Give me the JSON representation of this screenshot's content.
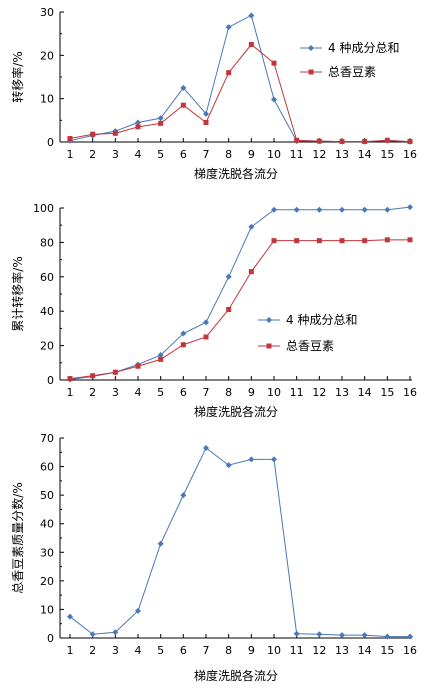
{
  "colors": {
    "blue": "#4a78b8",
    "red": "#c0363a",
    "axis": "#000000"
  },
  "chart_data": [
    {
      "type": "line",
      "xlabel": "梯度洗脱各流分",
      "ylabel": "转移率/%",
      "x": [
        1,
        2,
        3,
        4,
        5,
        6,
        7,
        8,
        9,
        10,
        11,
        12,
        13,
        14,
        15,
        16
      ],
      "xticks": [
        "1",
        "2",
        "3",
        "4",
        "5",
        "6",
        "7",
        "8",
        "9",
        "10",
        "11",
        "12",
        "13",
        "14",
        "15",
        "16"
      ],
      "ylim": [
        0,
        30
      ],
      "yticks": [
        0,
        10,
        20,
        30
      ],
      "legend_position": "right",
      "series": [
        {
          "name": "4 种成分总和",
          "color": "#4a78b8",
          "marker": "diamond",
          "values": [
            0.3,
            1.5,
            2.5,
            4.5,
            5.5,
            12.5,
            6.5,
            26.5,
            29.2,
            9.8,
            0.2,
            0.2,
            0.1,
            0.1,
            0.3,
            0.1
          ]
        },
        {
          "name": "总香豆素",
          "color": "#c0363a",
          "marker": "square",
          "values": [
            0.8,
            1.8,
            2.0,
            3.5,
            4.3,
            8.5,
            4.5,
            16.0,
            22.5,
            18.2,
            0.4,
            0.2,
            0.1,
            0.1,
            0.4,
            0.1
          ]
        }
      ]
    },
    {
      "type": "line",
      "xlabel": "梯度洗脱各流分",
      "ylabel": "累计转移率/%",
      "x": [
        1,
        2,
        3,
        4,
        5,
        6,
        7,
        8,
        9,
        10,
        11,
        12,
        13,
        14,
        15,
        16
      ],
      "xticks": [
        "1",
        "2",
        "3",
        "4",
        "5",
        "6",
        "7",
        "8",
        "9",
        "10",
        "11",
        "12",
        "13",
        "14",
        "15",
        "16"
      ],
      "ylim": [
        0,
        100
      ],
      "yticks": [
        0,
        20,
        40,
        60,
        80,
        100
      ],
      "legend_position": "center-right",
      "series": [
        {
          "name": "4 种成分总和",
          "color": "#4a78b8",
          "marker": "diamond",
          "values": [
            0.3,
            2,
            4.5,
            9,
            14.5,
            27,
            33.5,
            60,
            89,
            99,
            99,
            99,
            99,
            99,
            99,
            100.5
          ]
        },
        {
          "name": "总香豆素",
          "color": "#c0363a",
          "marker": "square",
          "values": [
            0.8,
            2.5,
            4.5,
            8,
            12,
            20.5,
            25,
            41,
            63,
            81,
            81,
            81,
            81,
            81,
            81.5,
            81.5
          ]
        }
      ]
    },
    {
      "type": "line",
      "xlabel": "梯度洗脱各流分",
      "ylabel": "总香豆素质量分数/%",
      "x": [
        1,
        2,
        3,
        4,
        5,
        6,
        7,
        8,
        9,
        10,
        11,
        12,
        13,
        14,
        15,
        16
      ],
      "xticks": [
        "1",
        "2",
        "3",
        "4",
        "5",
        "6",
        "7",
        "8",
        "9",
        "10",
        "11",
        "12",
        "13",
        "14",
        "15",
        "16"
      ],
      "ylim": [
        0,
        70
      ],
      "yticks": [
        0,
        10,
        20,
        30,
        40,
        50,
        60,
        70
      ],
      "series": [
        {
          "name": "",
          "color": "#4a78b8",
          "marker": "diamond",
          "values": [
            7.5,
            1.3,
            2.0,
            9.5,
            33,
            50,
            66.5,
            60.5,
            62.5,
            62.5,
            1.5,
            1.3,
            1.0,
            1.0,
            0.5,
            0.5
          ]
        }
      ]
    }
  ]
}
